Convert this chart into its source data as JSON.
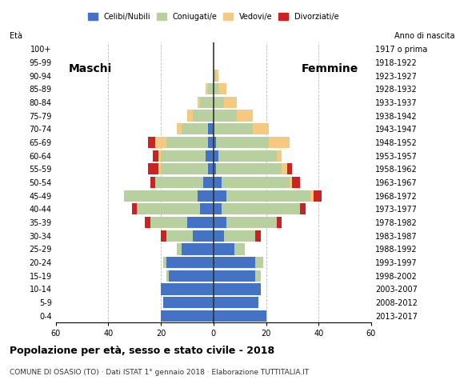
{
  "age_groups": [
    "0-4",
    "5-9",
    "10-14",
    "15-19",
    "20-24",
    "25-29",
    "30-34",
    "35-39",
    "40-44",
    "45-49",
    "50-54",
    "55-59",
    "60-64",
    "65-69",
    "70-74",
    "75-79",
    "80-84",
    "85-89",
    "90-94",
    "95-99",
    "100+"
  ],
  "birth_years": [
    "2013-2017",
    "2008-2012",
    "2003-2007",
    "1998-2002",
    "1993-1997",
    "1988-1992",
    "1983-1987",
    "1978-1982",
    "1973-1977",
    "1968-1972",
    "1963-1967",
    "1958-1962",
    "1953-1957",
    "1948-1952",
    "1943-1947",
    "1938-1942",
    "1933-1937",
    "1928-1932",
    "1923-1927",
    "1918-1922",
    "1917 o prima"
  ],
  "colors": {
    "celibe": "#4472c4",
    "coniugato": "#b8cfa0",
    "vedovo": "#f5c97f",
    "divorziato": "#cc2222"
  },
  "males": {
    "celibe": [
      20,
      19,
      20,
      17,
      18,
      12,
      8,
      10,
      5,
      6,
      4,
      2,
      3,
      2,
      2,
      0,
      0,
      0,
      0,
      0,
      0
    ],
    "coniugato": [
      0,
      0,
      0,
      1,
      1,
      2,
      10,
      14,
      24,
      28,
      18,
      18,
      17,
      16,
      10,
      8,
      5,
      2,
      0,
      0,
      0
    ],
    "vedovo": [
      0,
      0,
      0,
      0,
      0,
      0,
      0,
      0,
      0,
      0,
      0,
      1,
      1,
      4,
      2,
      2,
      1,
      1,
      0,
      0,
      0
    ],
    "divorziato": [
      0,
      0,
      0,
      0,
      0,
      0,
      2,
      2,
      2,
      0,
      2,
      4,
      2,
      3,
      0,
      0,
      0,
      0,
      0,
      0,
      0
    ]
  },
  "females": {
    "nubile": [
      20,
      17,
      18,
      16,
      16,
      8,
      4,
      5,
      3,
      5,
      3,
      1,
      2,
      1,
      0,
      0,
      0,
      0,
      0,
      0,
      0
    ],
    "coniugata": [
      0,
      0,
      0,
      2,
      3,
      4,
      12,
      19,
      30,
      32,
      26,
      25,
      22,
      20,
      15,
      9,
      4,
      2,
      1,
      0,
      0
    ],
    "vedova": [
      0,
      0,
      0,
      0,
      0,
      0,
      0,
      0,
      0,
      1,
      1,
      2,
      2,
      8,
      6,
      6,
      5,
      3,
      1,
      0,
      0
    ],
    "divorziata": [
      0,
      0,
      0,
      0,
      0,
      0,
      2,
      2,
      2,
      3,
      3,
      2,
      0,
      0,
      0,
      0,
      0,
      0,
      0,
      0,
      0
    ]
  },
  "title": "Popolazione per età, sesso e stato civile - 2018",
  "subtitle": "COMUNE DI OSASIO (TO) · Dati ISTAT 1° gennaio 2018 · Elaborazione TUTTITALIA.IT",
  "xlim": 60,
  "legend_labels": [
    "Celibi/Nubili",
    "Coniugati/e",
    "Vedovi/e",
    "Divorziati/e"
  ],
  "maschi_label": "Maschi",
  "femmine_label": "Femmine",
  "eta_label": "Età",
  "anno_label": "Anno di nascita",
  "background_color": "#ffffff"
}
